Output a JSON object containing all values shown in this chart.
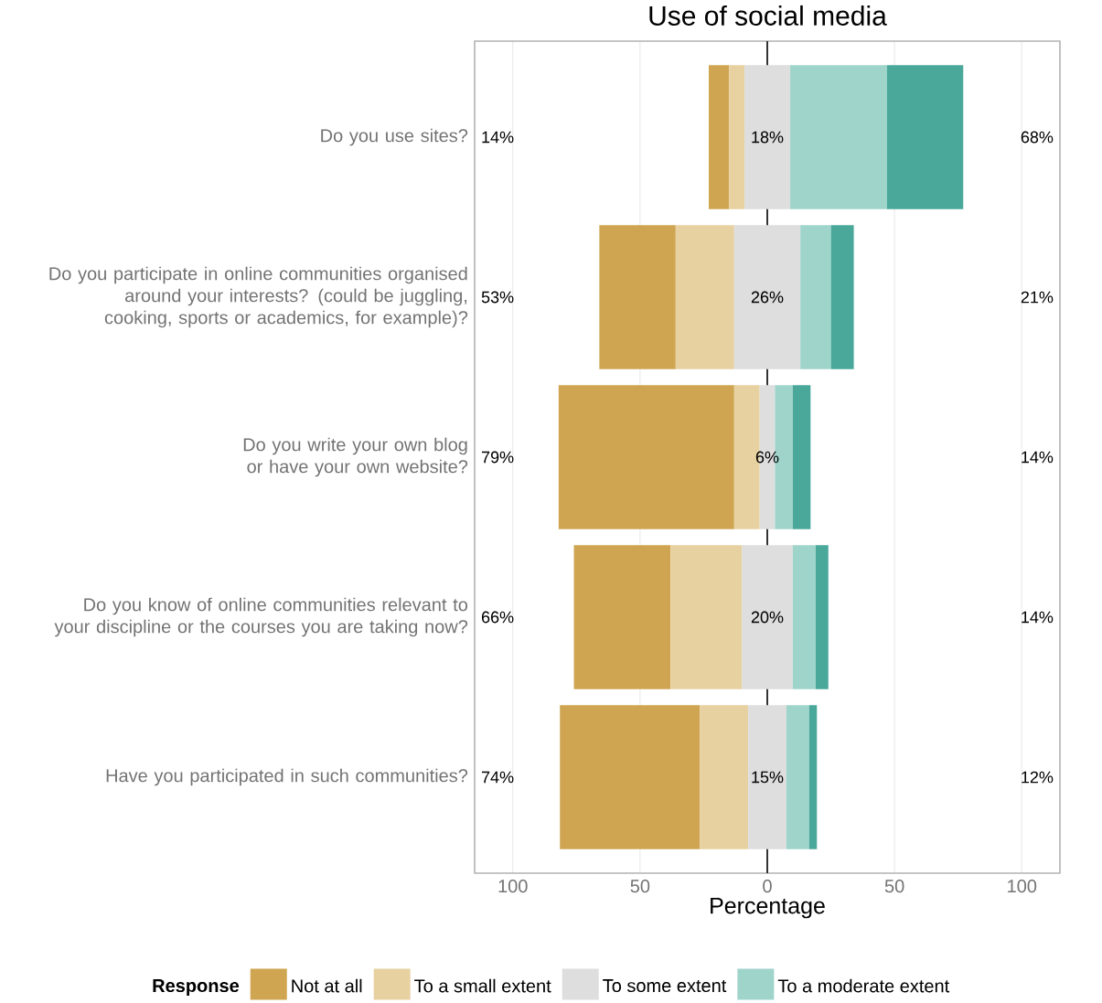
{
  "chart_data": {
    "type": "bar",
    "orientation": "horizontal",
    "title": "Use of social media",
    "xlabel": "Percentage",
    "legend_title": "Response",
    "legend": "bottom",
    "grid": "x",
    "categories": [
      "Do you use sites?",
      "Do you participate in online communities organised around your interests? (could be juggling, cooking, sports or academics, for example)?",
      "Do you write your own blog or have your own website?",
      "Do you know of online communities relevant to your discipline or the courses you are taking now?",
      "Have you participated in such communities?"
    ],
    "series": [
      {
        "name": "Not at all",
        "color": "#cfa552",
        "values": [
          8,
          30,
          69,
          38,
          55
        ],
        "base": [
          -23,
          -66,
          -82,
          -76,
          -81.5
        ]
      },
      {
        "name": "To a small extent",
        "color": "#e8d1a0",
        "values": [
          6,
          23,
          10,
          28,
          19
        ],
        "base": [
          -15,
          -36,
          -13,
          -38,
          -26.5
        ]
      },
      {
        "name": "To some extent",
        "color": "#dedede",
        "values": [
          18,
          26,
          6,
          20,
          15
        ],
        "base": [
          -9,
          -13,
          -3,
          -10,
          -7.5
        ],
        "value_labels": [
          "18%",
          "26%",
          "6%",
          "20%",
          "15%"
        ]
      },
      {
        "name": "To a moderate extent",
        "color": "#9fd4cb",
        "values": [
          38,
          12,
          7,
          9,
          9
        ],
        "base": [
          9,
          13,
          3,
          10,
          7.5
        ]
      },
      {
        "color": "#4aa89b",
        "values": [
          30,
          9,
          7,
          5,
          3
        ],
        "base": [
          47,
          25,
          10,
          19,
          16.5
        ]
      }
    ],
    "xlim": [
      -115,
      115
    ],
    "xticks": [
      {
        "value": -100,
        "label": "100"
      },
      {
        "value": -50,
        "label": "50"
      },
      0,
      50,
      100
    ],
    "ref_lines": [
      {
        "axis": "x",
        "value": 0,
        "color": "#333333"
      }
    ],
    "annotations": [
      "14%",
      "68%",
      "53%",
      "21%",
      "79%",
      "14%",
      "66%",
      "14%",
      "74%",
      "12%"
    ]
  }
}
